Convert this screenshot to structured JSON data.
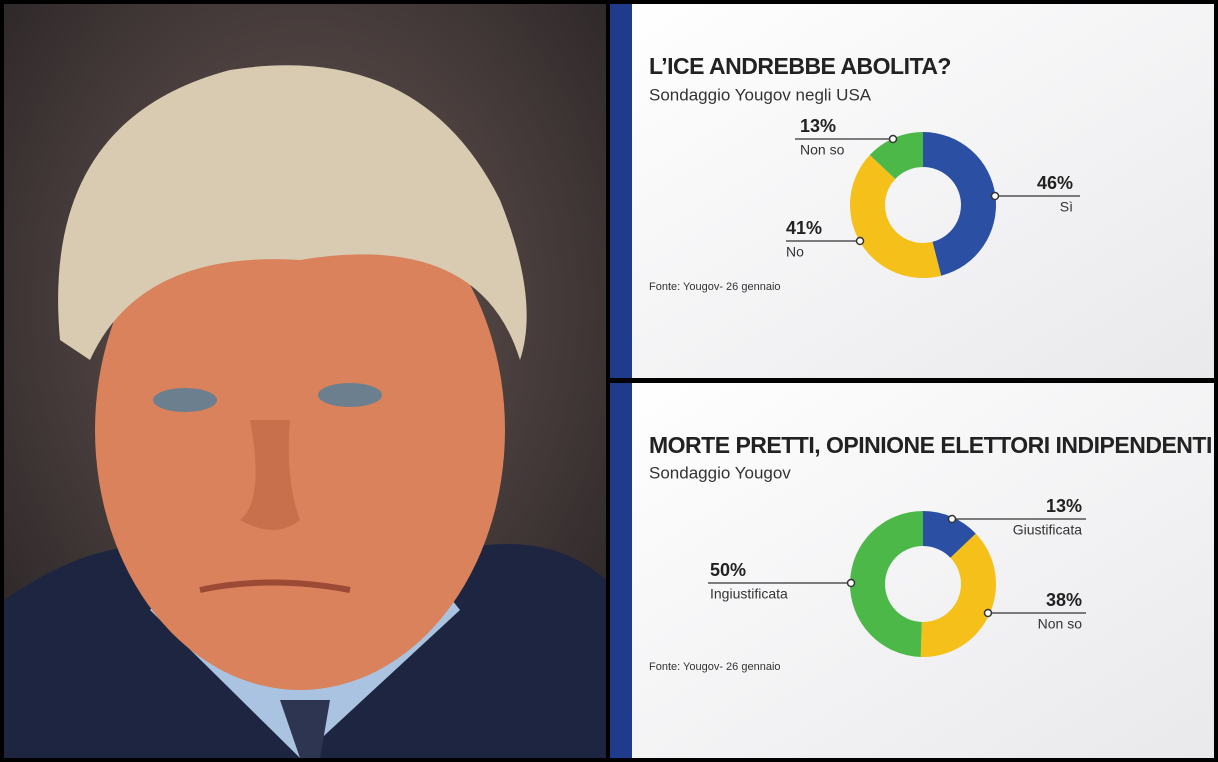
{
  "chart_data": [
    {
      "type": "pie",
      "title": "L’ICE ANDREBBE ABOLITA?",
      "subtitle": "Sondaggio Yougov negli USA",
      "categories": [
        "Sì",
        "No",
        "Non so"
      ],
      "values": [
        46,
        41,
        13
      ],
      "value_labels": [
        "46%",
        "41%",
        "13%"
      ],
      "colors": [
        "#2a4fa3",
        "#f5c01a",
        "#4cb848"
      ],
      "source": "Fonte:  Yougov- 26 gennaio"
    },
    {
      "type": "pie",
      "title": "MORTE PRETTI, OPINIONE ELETTORI INDIPENDENTI",
      "subtitle": "Sondaggio Yougov",
      "categories": [
        "Giustificata",
        "Non so",
        "Ingiustificata"
      ],
      "values": [
        13,
        38,
        50
      ],
      "value_labels": [
        "13%",
        "38%",
        "50%"
      ],
      "colors": [
        "#2a4fa3",
        "#f5c01a",
        "#4cb848"
      ],
      "source": "Fonte:  Yougov- 26 gennaio"
    }
  ]
}
